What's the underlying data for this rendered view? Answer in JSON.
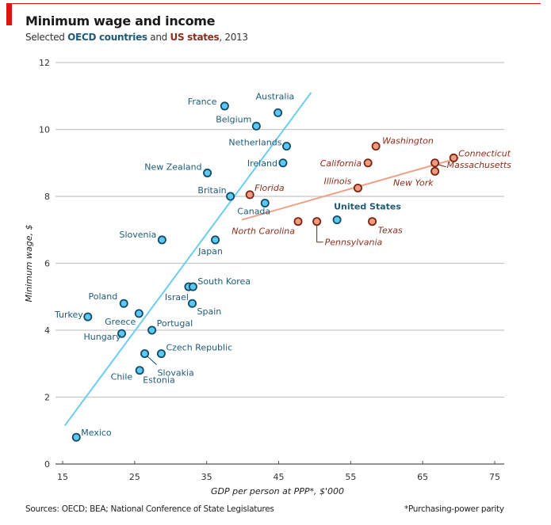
{
  "chart_data": {
    "type": "scatter",
    "title": "Minimum wage and income",
    "subtitle": {
      "prefix": "Selected ",
      "oecd_label": "OECD countries",
      "middle": " and ",
      "us_label": "US states",
      "suffix": ", 2013"
    },
    "xlabel": "GDP per person at PPP*, $'000",
    "ylabel": "Minimum wage, $",
    "xlim": [
      14,
      77
    ],
    "ylim": [
      0,
      12
    ],
    "x_ticks": [
      15,
      25,
      35,
      45,
      55,
      65,
      75
    ],
    "y_ticks": [
      0,
      2,
      4,
      6,
      8,
      10,
      12
    ],
    "grid": "horizontal",
    "colors": {
      "oecd_fill": "#5ec8f0",
      "oecd_stroke": "#0e4c68",
      "oecd_text": "#1e5b7a",
      "oecd_trend": "#6ccdf2",
      "us_fill": "#ee9b82",
      "us_stroke": "#7a2412",
      "us_text": "#8b2e1c",
      "us_trend": "#eea08a",
      "grid": "#c6c6c6",
      "accent": "#e3120b"
    },
    "series": [
      {
        "name": "OECD countries",
        "points": [
          {
            "label": "France",
            "x": 37.5,
            "y": 10.7
          },
          {
            "label": "Australia",
            "x": 44.9,
            "y": 10.5
          },
          {
            "label": "Belgium",
            "x": 41.9,
            "y": 10.1
          },
          {
            "label": "Netherlands",
            "x": 46.1,
            "y": 9.5
          },
          {
            "label": "Ireland",
            "x": 45.6,
            "y": 9.0
          },
          {
            "label": "New Zealand",
            "x": 35.1,
            "y": 8.7
          },
          {
            "label": "Britain",
            "x": 38.3,
            "y": 8.0
          },
          {
            "label": "Canada",
            "x": 43.1,
            "y": 7.8
          },
          {
            "label": "United States",
            "x": 53.1,
            "y": 7.3
          },
          {
            "label": "Slovenia",
            "x": 28.8,
            "y": 6.7
          },
          {
            "label": "Japan",
            "x": 36.2,
            "y": 6.7
          },
          {
            "label": "Israel",
            "x": 32.5,
            "y": 5.3
          },
          {
            "label": "South Korea",
            "x": 33.1,
            "y": 5.3
          },
          {
            "label": "Spain",
            "x": 33.0,
            "y": 4.8
          },
          {
            "label": "Poland",
            "x": 23.5,
            "y": 4.8
          },
          {
            "label": "Greece",
            "x": 25.6,
            "y": 4.5
          },
          {
            "label": "Turkey",
            "x": 18.5,
            "y": 4.4
          },
          {
            "label": "Portugal",
            "x": 27.4,
            "y": 4.0
          },
          {
            "label": "Hungary",
            "x": 23.2,
            "y": 3.9
          },
          {
            "label": "Czech Republic",
            "x": 28.7,
            "y": 3.3
          },
          {
            "label": "Slovakia",
            "x": 26.4,
            "y": 3.3
          },
          {
            "label": "Chile",
            "x": 25.7,
            "y": 2.8
          },
          {
            "label": "Estonia",
            "x": 25.7,
            "y": 2.8
          },
          {
            "label": "Mexico",
            "x": 16.9,
            "y": 0.8
          }
        ],
        "trend": [
          [
            15.3,
            1.15
          ],
          [
            49.5,
            11.1
          ]
        ]
      },
      {
        "name": "US states",
        "points": [
          {
            "label": "Washington",
            "x": 58.5,
            "y": 9.5
          },
          {
            "label": "California",
            "x": 57.4,
            "y": 9.0
          },
          {
            "label": "Connecticut",
            "x": 69.3,
            "y": 9.15
          },
          {
            "label": "Massachusetts",
            "x": 66.7,
            "y": 9.0
          },
          {
            "label": "New York",
            "x": 66.7,
            "y": 8.75
          },
          {
            "label": "Illinois",
            "x": 56.0,
            "y": 8.25
          },
          {
            "label": "Florida",
            "x": 41.0,
            "y": 8.05
          },
          {
            "label": "North Carolina",
            "x": 47.7,
            "y": 7.25
          },
          {
            "label": "Pennsylvania",
            "x": 50.3,
            "y": 7.25
          },
          {
            "label": "Texas",
            "x": 58.0,
            "y": 7.25
          }
        ],
        "trend": [
          [
            39.9,
            7.3
          ],
          [
            70.0,
            9.15
          ]
        ]
      }
    ]
  },
  "footer": {
    "sources": "Sources: OECD; BEA; National Conference of State Legislatures",
    "footnote": "*Purchasing-power parity"
  }
}
